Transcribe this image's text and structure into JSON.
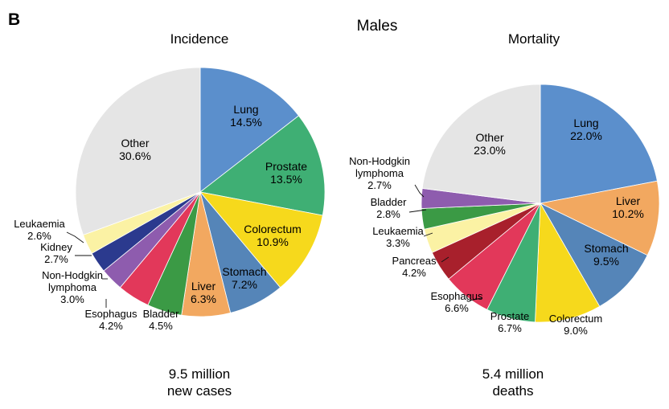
{
  "panel_letter": "B",
  "title": "Males",
  "charts": [
    {
      "subtitle": "Incidence",
      "caption_line1": "9.5 million",
      "caption_line2": "new cases"
    },
    {
      "subtitle": "Mortality",
      "caption_line1": "5.4 million",
      "caption_line2": "deaths"
    }
  ],
  "chart_data": [
    {
      "type": "pie",
      "title": "Incidence",
      "start_angle_deg": 0,
      "direction": "clockwise",
      "slices": [
        {
          "name": "Lung",
          "value": 14.5,
          "value_label": "14.5%",
          "color": "#5B8FCC"
        },
        {
          "name": "Prostate",
          "value": 13.5,
          "value_label": "13.5%",
          "color": "#3FAF74"
        },
        {
          "name": "Colorectum",
          "value": 10.9,
          "value_label": "10.9%",
          "color": "#F6D91C"
        },
        {
          "name": "Stomach",
          "value": 7.2,
          "value_label": "7.2%",
          "color": "#5585B8"
        },
        {
          "name": "Liver",
          "value": 6.3,
          "value_label": "6.3%",
          "color": "#F2A860"
        },
        {
          "name": "Bladder",
          "value": 4.5,
          "value_label": "4.5%",
          "color": "#3B9A45"
        },
        {
          "name": "Esophagus",
          "value": 4.2,
          "value_label": "4.2%",
          "color": "#E2385A"
        },
        {
          "name": "Non-Hodgkin lymphoma",
          "value": 3.0,
          "value_label": "3.0%",
          "color": "#8E5CAE"
        },
        {
          "name": "Kidney",
          "value": 2.7,
          "value_label": "2.7%",
          "color": "#2B3A8E"
        },
        {
          "name": "Leukaemia",
          "value": 2.6,
          "value_label": "2.6%",
          "color": "#FBF2A4"
        },
        {
          "name": "Other",
          "value": 30.6,
          "value_label": "30.6%",
          "color": "#E5E5E5"
        }
      ]
    },
    {
      "type": "pie",
      "title": "Mortality",
      "start_angle_deg": 0,
      "direction": "clockwise",
      "slices": [
        {
          "name": "Lung",
          "value": 22.0,
          "value_label": "22.0%",
          "color": "#5B8FCC"
        },
        {
          "name": "Liver",
          "value": 10.2,
          "value_label": "10.2%",
          "color": "#F2A860"
        },
        {
          "name": "Stomach",
          "value": 9.5,
          "value_label": "9.5%",
          "color": "#5585B8"
        },
        {
          "name": "Colorectum",
          "value": 9.0,
          "value_label": "9.0%",
          "color": "#F6D91C"
        },
        {
          "name": "Prostate",
          "value": 6.7,
          "value_label": "6.7%",
          "color": "#3FAF74"
        },
        {
          "name": "Esophagus",
          "value": 6.6,
          "value_label": "6.6%",
          "color": "#E2385A"
        },
        {
          "name": "Pancreas",
          "value": 4.2,
          "value_label": "4.2%",
          "color": "#A8202C"
        },
        {
          "name": "Leukaemia",
          "value": 3.3,
          "value_label": "3.3%",
          "color": "#FBF2A4"
        },
        {
          "name": "Bladder",
          "value": 2.8,
          "value_label": "2.8%",
          "color": "#3B9A45"
        },
        {
          "name": "Non-Hodgkin lymphoma",
          "value": 2.7,
          "value_label": "2.7%",
          "color": "#8E5CAE"
        },
        {
          "name": "Other",
          "value": 23.0,
          "value_label": "23.0%",
          "color": "#E5E5E5"
        }
      ]
    }
  ]
}
